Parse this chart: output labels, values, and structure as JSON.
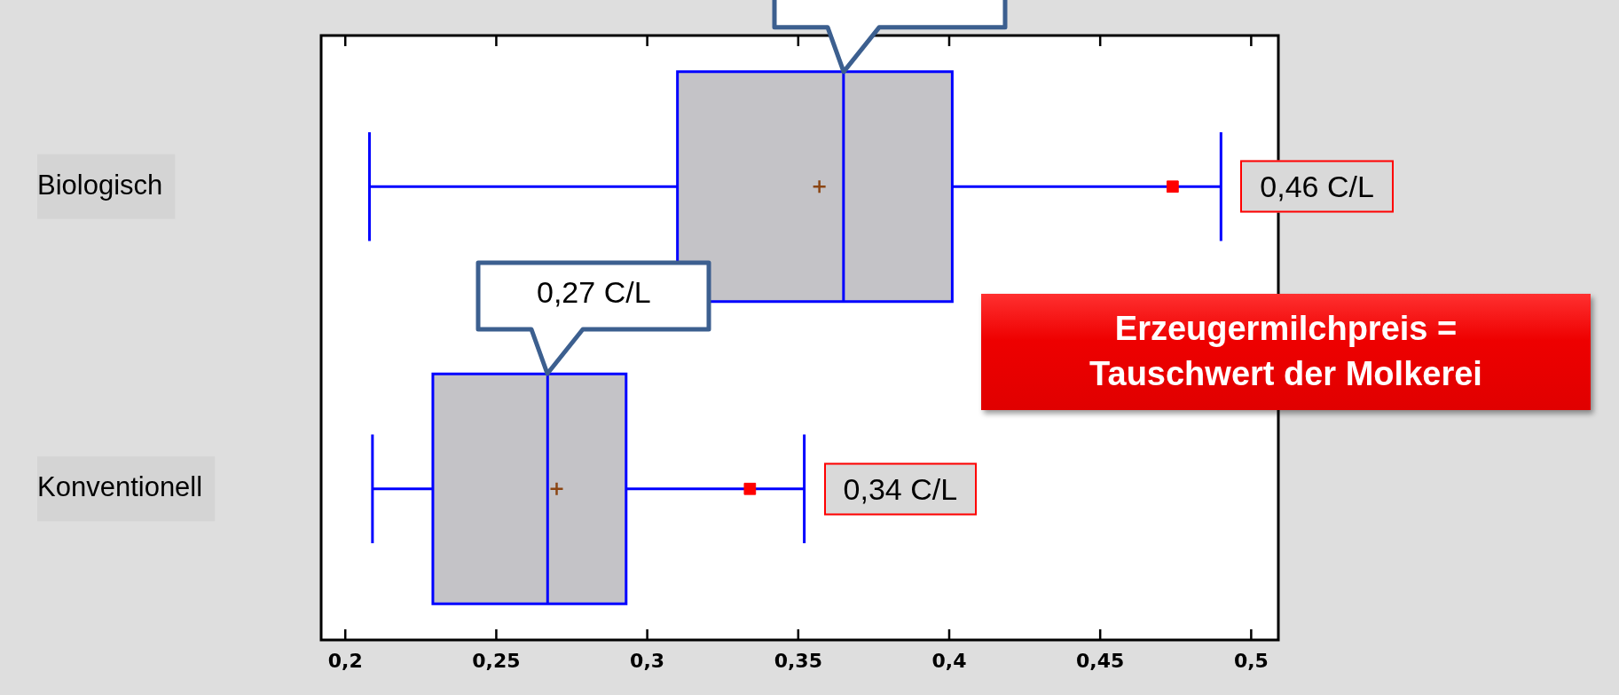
{
  "chart_data": {
    "type": "box",
    "orientation": "horizontal",
    "categories": [
      "Biologisch",
      "Konventionell"
    ],
    "series": [
      {
        "color": "#c4c3c7",
        "boxes": [
          {
            "low": 0.208,
            "q1": 0.31,
            "median": 0.365,
            "q3": 0.401,
            "high": 0.49,
            "mean": 0.357
          },
          {
            "low": 0.209,
            "q1": 0.229,
            "median": 0.267,
            "q3": 0.293,
            "high": 0.352,
            "mean": 0.27
          }
        ]
      },
      {
        "type": "scatter",
        "color": "#ff0000",
        "marker": "square",
        "x": [
          "Biologisch",
          "Konventionell"
        ],
        "values": [
          0.474,
          0.334
        ]
      }
    ],
    "xlim": [
      0.192,
      0.509
    ],
    "xticks": [
      {
        "value": 0.2,
        "label": "0,2"
      },
      {
        "value": 0.25,
        "label": "0,25"
      },
      {
        "value": 0.3,
        "label": "0,3"
      },
      {
        "value": 0.35,
        "label": "0,35"
      },
      {
        "value": 0.4,
        "label": "0,4"
      },
      {
        "value": 0.45,
        "label": "0,45"
      },
      {
        "value": 0.5,
        "label": "0,5"
      }
    ],
    "grid": false,
    "legend": false,
    "annotations": [
      "0,27 C/L",
      {
        "text": "0,46 C/L",
        "x": 0.49,
        "y": "Biologisch"
      },
      {
        "text": "0,34 C/L",
        "x": 0.352,
        "y": "Konventionell"
      },
      "Erzeugermilchpreis = Tauschwert der Molkerei"
    ]
  }
}
